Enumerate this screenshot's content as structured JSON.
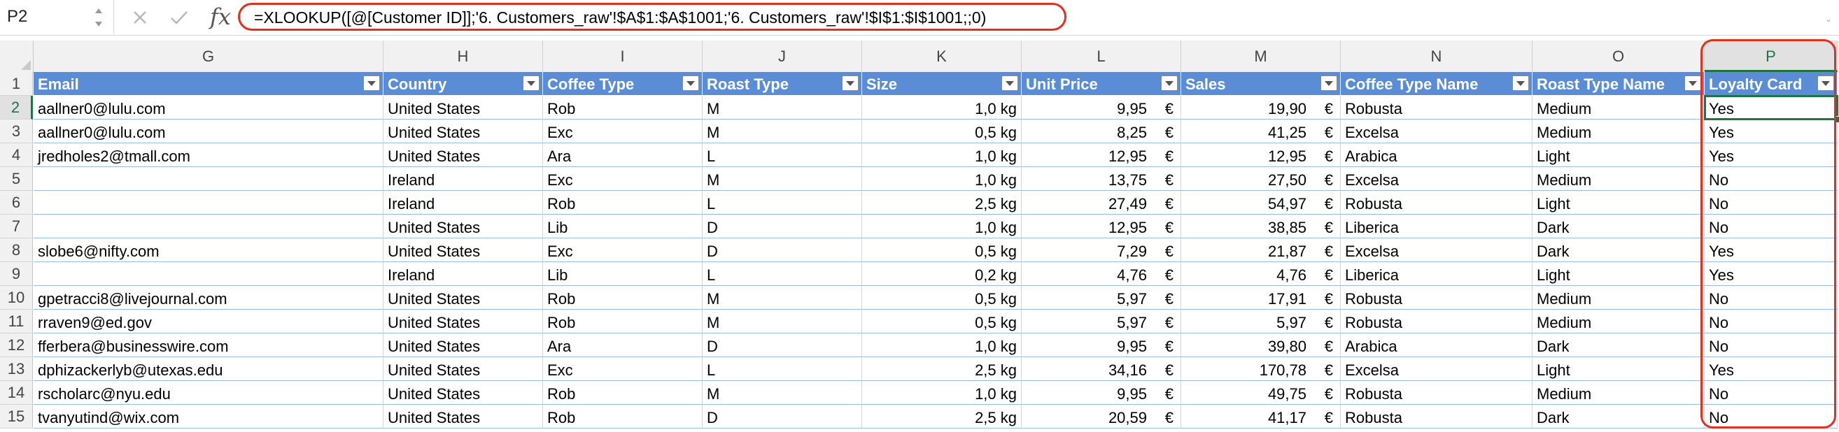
{
  "formula_bar": {
    "name_box": "P2",
    "formula": "=XLOOKUP([@[Customer ID]];'6. Customers_raw'!$A$1:$A$1001;'6. Customers_raw'!$I$1:$I$1001;;0)",
    "icons": {
      "cancel": "x-icon",
      "enter": "check-icon",
      "function": "fx-icon"
    }
  },
  "colors": {
    "header_fill": "#5b8dd6",
    "accent": "#217346",
    "callout": "#e0301e",
    "row_border": "#9cb9df"
  },
  "column_letters": [
    "G",
    "H",
    "I",
    "J",
    "K",
    "L",
    "M",
    "N",
    "O",
    "P"
  ],
  "selected_column": "P",
  "selected_cell": "P2",
  "table": {
    "headers": [
      "Email",
      "Country",
      "Coffee Type",
      "Roast Type",
      "Size",
      "Unit Price",
      "Sales",
      "Coffee Type Name",
      "Roast Type Name",
      "Loyalty Card"
    ],
    "currency_symbol": "€",
    "rows": [
      {
        "num": "2",
        "cells": [
          "aallner0@lulu.com",
          "United States",
          "Rob",
          "M",
          "1,0 kg",
          "9,95",
          "19,90",
          "Robusta",
          "Medium",
          "Yes"
        ]
      },
      {
        "num": "3",
        "cells": [
          "aallner0@lulu.com",
          "United States",
          "Exc",
          "M",
          "0,5 kg",
          "8,25",
          "41,25",
          "Excelsa",
          "Medium",
          "Yes"
        ]
      },
      {
        "num": "4",
        "cells": [
          "jredholes2@tmall.com",
          "United States",
          "Ara",
          "L",
          "1,0 kg",
          "12,95",
          "12,95",
          "Arabica",
          "Light",
          "Yes"
        ]
      },
      {
        "num": "5",
        "cells": [
          "",
          "Ireland",
          "Exc",
          "M",
          "1,0 kg",
          "13,75",
          "27,50",
          "Excelsa",
          "Medium",
          "No"
        ]
      },
      {
        "num": "6",
        "cells": [
          "",
          "Ireland",
          "Rob",
          "L",
          "2,5 kg",
          "27,49",
          "54,97",
          "Robusta",
          "Light",
          "No"
        ]
      },
      {
        "num": "7",
        "cells": [
          "",
          "United States",
          "Lib",
          "D",
          "1,0 kg",
          "12,95",
          "38,85",
          "Liberica",
          "Dark",
          "No"
        ]
      },
      {
        "num": "8",
        "cells": [
          "slobe6@nifty.com",
          "United States",
          "Exc",
          "D",
          "0,5 kg",
          "7,29",
          "21,87",
          "Excelsa",
          "Dark",
          "Yes"
        ]
      },
      {
        "num": "9",
        "cells": [
          "",
          "Ireland",
          "Lib",
          "L",
          "0,2 kg",
          "4,76",
          "4,76",
          "Liberica",
          "Light",
          "Yes"
        ]
      },
      {
        "num": "10",
        "cells": [
          "gpetracci8@livejournal.com",
          "United States",
          "Rob",
          "M",
          "0,5 kg",
          "5,97",
          "17,91",
          "Robusta",
          "Medium",
          "No"
        ]
      },
      {
        "num": "11",
        "cells": [
          "rraven9@ed.gov",
          "United States",
          "Rob",
          "M",
          "0,5 kg",
          "5,97",
          "5,97",
          "Robusta",
          "Medium",
          "No"
        ]
      },
      {
        "num": "12",
        "cells": [
          "fferbera@businesswire.com",
          "United States",
          "Ara",
          "D",
          "1,0 kg",
          "9,95",
          "39,80",
          "Arabica",
          "Dark",
          "No"
        ]
      },
      {
        "num": "13",
        "cells": [
          "dphizackerlyb@utexas.edu",
          "United States",
          "Exc",
          "L",
          "2,5 kg",
          "34,16",
          "170,78",
          "Excelsa",
          "Light",
          "Yes"
        ]
      },
      {
        "num": "14",
        "cells": [
          "rscholarc@nyu.edu",
          "United States",
          "Rob",
          "M",
          "1,0 kg",
          "9,95",
          "49,75",
          "Robusta",
          "Medium",
          "No"
        ]
      },
      {
        "num": "15",
        "cells": [
          "tvanyutind@wix.com",
          "United States",
          "Rob",
          "D",
          "2,5 kg",
          "20,59",
          "41,17",
          "Robusta",
          "Dark",
          "No"
        ]
      }
    ]
  }
}
